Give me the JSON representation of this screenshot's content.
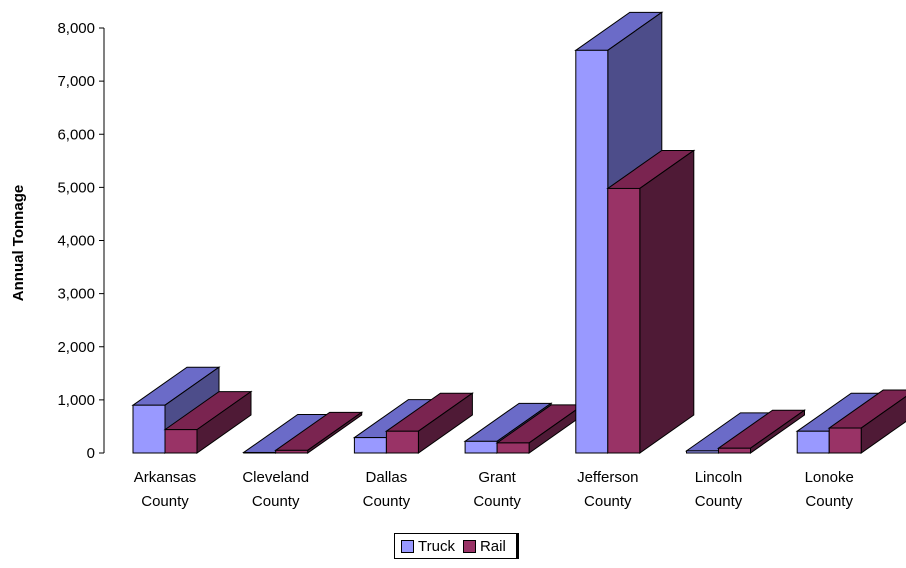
{
  "chart_data": {
    "type": "bar",
    "title": "",
    "xlabel": "",
    "ylabel": "Annual Tonnage",
    "ylim": [
      0,
      8000
    ],
    "yticks": [
      0,
      1000,
      2000,
      3000,
      4000,
      5000,
      6000,
      7000,
      8000
    ],
    "ytick_labels": [
      "0",
      "1,000",
      "2,000",
      "3,000",
      "4,000",
      "5,000",
      "6,000",
      "7,000",
      "8,000"
    ],
    "categories": [
      [
        "Arkansas",
        "County"
      ],
      [
        "Cleveland",
        "County"
      ],
      [
        "Dallas",
        "County"
      ],
      [
        "Grant",
        "County"
      ],
      [
        "Jefferson",
        "County"
      ],
      [
        "Lincoln",
        "County"
      ],
      [
        "Lonoke",
        "County"
      ]
    ],
    "series": [
      {
        "name": "Truck",
        "values": [
          900,
          10,
          290,
          220,
          7580,
          40,
          410
        ],
        "colors": {
          "front": "#9999ff",
          "top": "#6b6bc8",
          "side": "#4d4d8a"
        }
      },
      {
        "name": "Rail",
        "values": [
          440,
          50,
          410,
          190,
          4980,
          90,
          470
        ],
        "colors": {
          "front": "#993366",
          "top": "#7a2450",
          "side": "#4f1a36"
        }
      }
    ],
    "legend_position": "bottom",
    "grid": false,
    "three_d": true
  }
}
